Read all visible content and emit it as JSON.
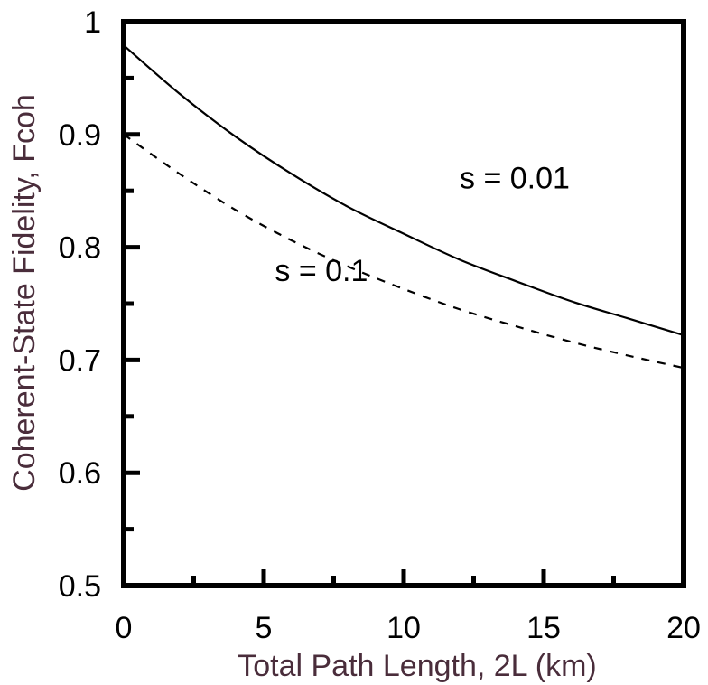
{
  "chart_data": {
    "type": "line",
    "title": "",
    "xlabel": "Total Path Length, 2L (km)",
    "ylabel": "Coherent-State Fidelity, Fcoh",
    "xlim": [
      0,
      20
    ],
    "ylim": [
      0.5,
      1
    ],
    "x_ticks": [
      "0",
      "5",
      "10",
      "15",
      "20"
    ],
    "y_ticks": [
      "0.5",
      "0.6",
      "0.7",
      "0.8",
      "0.9",
      "1"
    ],
    "x_minor_step": 2.5,
    "y_minor_step": 0.05,
    "grid": false,
    "axis_title_color": "#4a2d3b",
    "series": [
      {
        "label": "s = 0.01",
        "style": "solid",
        "color": "#000000",
        "x": [
          0,
          2,
          4,
          6,
          8,
          10,
          12,
          14,
          16,
          18,
          20
        ],
        "y": [
          0.979,
          0.936,
          0.898,
          0.865,
          0.836,
          0.812,
          0.789,
          0.77,
          0.752,
          0.737,
          0.722
        ]
      },
      {
        "label": "s = 0.1",
        "style": "dashed",
        "color": "#000000",
        "x": [
          0,
          2,
          4,
          6,
          8,
          10,
          12,
          14,
          16,
          18,
          20
        ],
        "y": [
          0.9,
          0.865,
          0.833,
          0.806,
          0.783,
          0.763,
          0.745,
          0.73,
          0.716,
          0.704,
          0.693
        ]
      }
    ],
    "annotations": [
      {
        "text": "s = 0.01",
        "x": 12.0,
        "y": 0.852
      },
      {
        "text": "s = 0.1",
        "x": 5.4,
        "y": 0.77
      }
    ]
  }
}
